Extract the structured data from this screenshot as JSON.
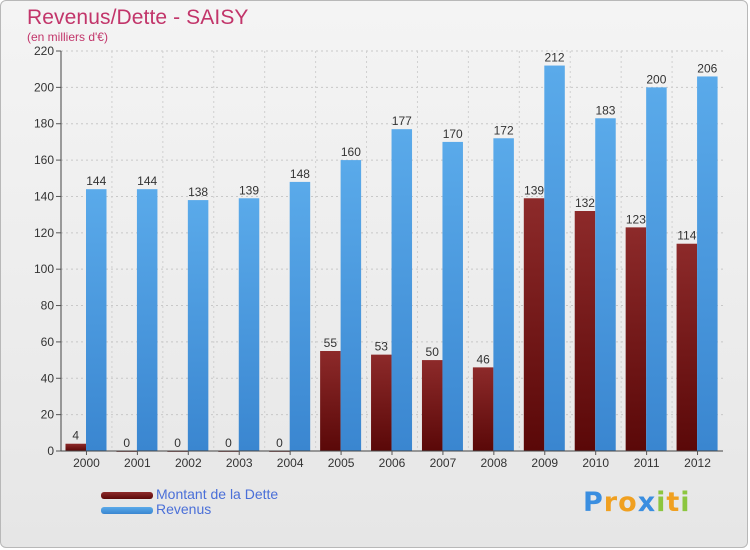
{
  "chart_data": {
    "type": "bar",
    "title": "Revenus/Dette - SAISY",
    "subtitle": "(en milliers d'€)",
    "categories": [
      "2000",
      "2001",
      "2002",
      "2003",
      "2004",
      "2005",
      "2006",
      "2007",
      "2008",
      "2009",
      "2010",
      "2011",
      "2012"
    ],
    "series": [
      {
        "name": "Montant de la Dette",
        "values": [
          4,
          0,
          0,
          0,
          0,
          55,
          53,
          50,
          46,
          139,
          132,
          123,
          114
        ],
        "color": "#7a1a1a"
      },
      {
        "name": "Revenus",
        "values": [
          144,
          144,
          138,
          139,
          148,
          160,
          177,
          170,
          172,
          212,
          183,
          200,
          206
        ],
        "color": "#4f9ee3"
      }
    ],
    "ylim": [
      0,
      220
    ],
    "yticks": [
      "0",
      "20",
      "40",
      "60",
      "80",
      "100",
      "120",
      "140",
      "160",
      "180",
      "200",
      "220"
    ],
    "grid": true,
    "legend": "bottom-left"
  },
  "brand": {
    "letters": [
      "P",
      "r",
      "o",
      "x",
      "i",
      "t",
      "i"
    ],
    "colors": [
      "#3a8ee0",
      "#f0a020",
      "#f0a020",
      "#3a8ee0",
      "#8cc63f",
      "#f0a020",
      "#8cc63f"
    ]
  }
}
